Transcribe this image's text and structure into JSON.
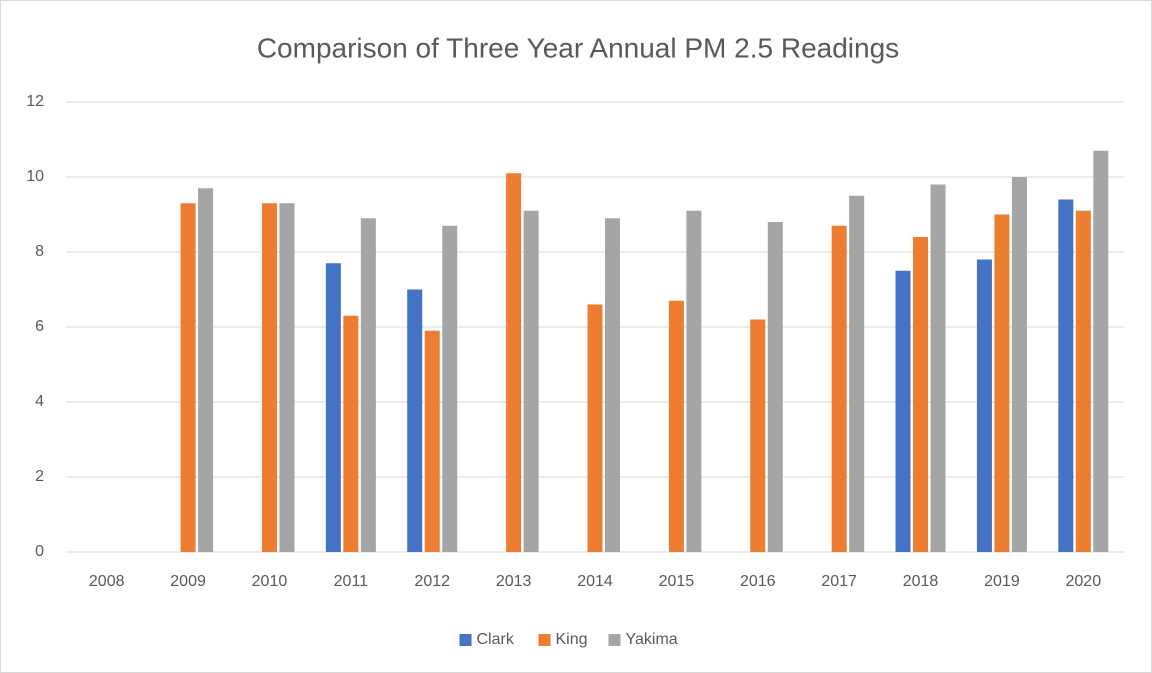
{
  "chart_data": {
    "type": "bar",
    "title": "Comparison of Three Year Annual PM 2.5 Readings",
    "categories": [
      "2008",
      "2009",
      "2010",
      "2011",
      "2012",
      "2013",
      "2014",
      "2015",
      "2016",
      "2017",
      "2018",
      "2019",
      "2020"
    ],
    "series": [
      {
        "name": "Clark",
        "color": "#4472c4",
        "values": [
          null,
          null,
          null,
          7.7,
          7.0,
          null,
          null,
          null,
          null,
          null,
          7.5,
          7.8,
          9.4
        ]
      },
      {
        "name": "King",
        "color": "#ed7d31",
        "values": [
          null,
          9.3,
          9.3,
          6.3,
          5.9,
          10.1,
          6.6,
          6.7,
          6.2,
          8.7,
          8.4,
          9.0,
          9.1
        ]
      },
      {
        "name": "Yakima",
        "color": "#a5a5a5",
        "values": [
          null,
          9.7,
          9.3,
          8.9,
          8.7,
          9.1,
          8.9,
          9.1,
          8.8,
          9.5,
          9.8,
          10.0,
          10.7
        ]
      }
    ],
    "ylim": [
      0,
      12
    ],
    "yticks": [
      0,
      2,
      4,
      6,
      8,
      10,
      12
    ],
    "grid": true,
    "legend": "bottom"
  }
}
